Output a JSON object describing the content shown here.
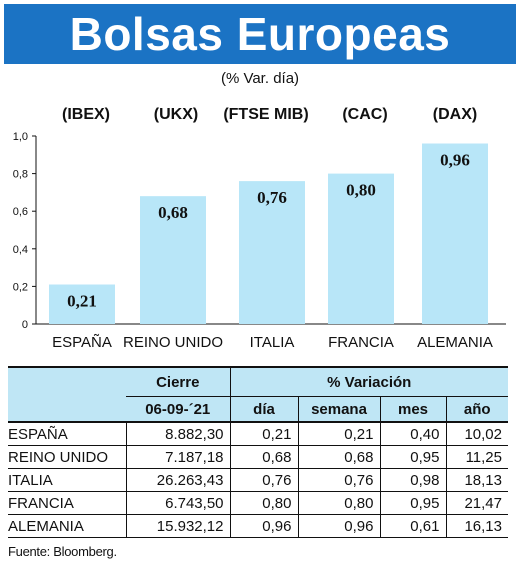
{
  "header": {
    "title": "Bolsas Europeas",
    "subtitle": "(% Var. día)"
  },
  "chart_data": {
    "type": "bar",
    "categories": [
      "ESPAÑA",
      "REINO UNIDO",
      "ITALIA",
      "FRANCIA",
      "ALEMANIA"
    ],
    "index_codes": [
      "(IBEX)",
      "(UKX)",
      "(FTSE MIB)",
      "(CAC)",
      "(DAX)"
    ],
    "values": [
      0.21,
      0.68,
      0.76,
      0.8,
      0.96
    ],
    "data_labels": [
      "0,21",
      "0,68",
      "0,76",
      "0,80",
      "0,96"
    ],
    "yticks": [
      "0",
      "0,2",
      "0,4",
      "0,6",
      "0,8",
      "1,0"
    ],
    "ylim": [
      0,
      1.0
    ],
    "bar_color": "#b8e6f8",
    "grid": false
  },
  "table": {
    "header_cierre": "Cierre",
    "header_variacion": "% Variación",
    "date": "06-09-´21",
    "sub_headers": [
      "día",
      "semana",
      "mes",
      "año"
    ],
    "rows": [
      {
        "name": "ESPAÑA",
        "cierre": "8.882,30",
        "dia": "0,21",
        "semana": "0,21",
        "mes": "0,40",
        "anio": "10,02"
      },
      {
        "name": "REINO UNIDO",
        "cierre": "7.187,18",
        "dia": "0,68",
        "semana": "0,68",
        "mes": "0,95",
        "anio": "11,25"
      },
      {
        "name": "ITALIA",
        "cierre": "26.263,43",
        "dia": "0,76",
        "semana": "0,76",
        "mes": "0,98",
        "anio": "18,13"
      },
      {
        "name": "FRANCIA",
        "cierre": "6.743,50",
        "dia": "0,80",
        "semana": "0,80",
        "mes": "0,95",
        "anio": "21,47"
      },
      {
        "name": "ALEMANIA",
        "cierre": "15.932,12",
        "dia": "0,96",
        "semana": "0,96",
        "mes": "0,61",
        "anio": "16,13"
      }
    ]
  },
  "footer": {
    "source": "Fuente: Bloomberg."
  }
}
